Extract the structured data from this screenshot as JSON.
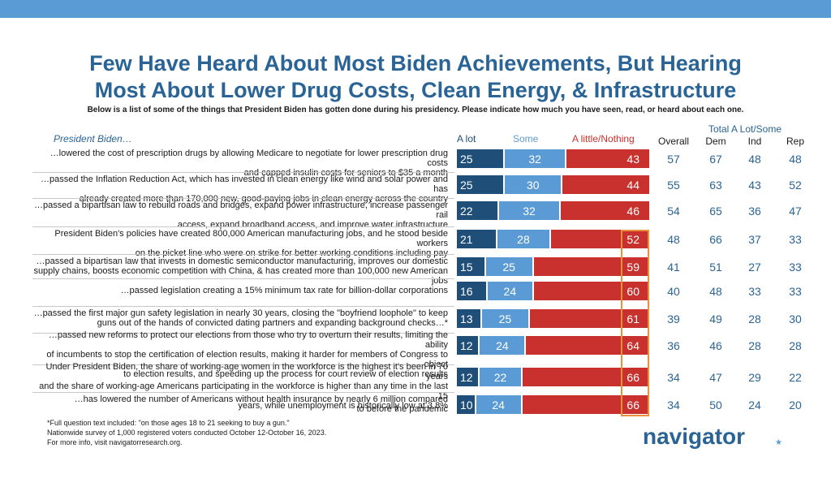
{
  "title_line1": "Few Have Heard About Most Biden Achievements, But Hearing",
  "title_line2": "Most About Lower Drug Costs, Clean Energy, & Infrastructure",
  "subtitle": "Below is a list of some of the things that President Biden has gotten done during his presidency. Please indicate how much you have seen, read, or heard about each one.",
  "row_header": "President Biden…",
  "group_header": "Total A Lot/Some",
  "colors": {
    "a_lot": "#1f4e79",
    "some": "#5b9bd5",
    "little": "#c8312d",
    "highlight": "#e8903a",
    "accent_text": "#2a6496"
  },
  "chart_data": {
    "type": "bar",
    "stacked": true,
    "orientation": "horizontal",
    "series_names": [
      "A lot",
      "Some",
      "A little/Nothing"
    ],
    "stat_columns": [
      "Overall",
      "Dem",
      "Ind",
      "Rep"
    ],
    "rows": [
      {
        "text": "…lowered the cost of prescription drugs by allowing Medicare to negotiate for lower prescription drug costs\nand capped insulin costs for seniors to $35 a month",
        "a_lot": 25,
        "some": 32,
        "little": 43,
        "overall": 57,
        "dem": 67,
        "ind": 48,
        "rep": 48
      },
      {
        "text": "…passed the Inflation Reduction Act, which has invested in clean energy like wind and solar power and has\nalready created more than 170,000 new, good-paying jobs in clean energy across the country",
        "a_lot": 25,
        "some": 30,
        "little": 44,
        "overall": 55,
        "dem": 63,
        "ind": 43,
        "rep": 52
      },
      {
        "text": "…passed a bipartisan law to rebuild roads and bridges, expand power infrastructure, increase passenger rail\naccess, expand broadband access, and improve water infrastructure",
        "a_lot": 22,
        "some": 32,
        "little": 46,
        "overall": 54,
        "dem": 65,
        "ind": 36,
        "rep": 47
      },
      {
        "text": "President Biden's policies have created 800,000 American manufacturing jobs, and he stood beside workers\non the picket line who were on strike for better working conditions including pay",
        "a_lot": 21,
        "some": 28,
        "little": 52,
        "overall": 48,
        "dem": 66,
        "ind": 37,
        "rep": 33
      },
      {
        "text": "…passed a bipartisan law that invests in domestic semiconductor manufacturing, improves our domestic\nsupply chains, boosts economic competition with China, & has created more than 100,000 new American jobs",
        "a_lot": 15,
        "some": 25,
        "little": 59,
        "overall": 41,
        "dem": 51,
        "ind": 27,
        "rep": 33
      },
      {
        "text": "…passed legislation creating a 15% minimum tax rate for billion-dollar corporations",
        "a_lot": 16,
        "some": 24,
        "little": 60,
        "overall": 40,
        "dem": 48,
        "ind": 33,
        "rep": 33
      },
      {
        "text": "…passed the first major gun safety legislation in nearly 30 years, closing the \"boyfriend loophole\" to keep\nguns out of the hands of convicted dating partners and expanding background checks…*",
        "a_lot": 13,
        "some": 25,
        "little": 61,
        "overall": 39,
        "dem": 49,
        "ind": 28,
        "rep": 30
      },
      {
        "text": "…passed new reforms to protect our elections from those who try to overturn their results, limiting the ability\nof incumbents to stop the certification of election results, making it harder for members of Congress to object\nto election results, and speeding up the process for court review of election results",
        "a_lot": 12,
        "some": 24,
        "little": 64,
        "overall": 36,
        "dem": 46,
        "ind": 28,
        "rep": 28
      },
      {
        "text": "Under President Biden, the share of working-age women in the workforce is the highest it's been in 70 years\nand the share of working-age Americans participating in the workforce is higher than any time in the last 15\nyears, while unemployment is historically low at 3.8%",
        "a_lot": 12,
        "some": 22,
        "little": 66,
        "overall": 34,
        "dem": 47,
        "ind": 29,
        "rep": 22
      },
      {
        "text": "…has lowered the number of Americans without health insurance by nearly 6 million compared\nto before the pandemic",
        "a_lot": 10,
        "some": 24,
        "little": 66,
        "overall": 34,
        "dem": 50,
        "ind": 24,
        "rep": 20
      }
    ]
  },
  "footnotes": [
    "*Full question text included: \"on those ages 18 to 21 seeking to buy a gun.\"",
    "Nationwide survey of 1,000 registered voters conducted October 12-October 16, 2023.",
    "For more info, visit navigatorresearch.org."
  ],
  "logo_text": "navigator",
  "logo_dot": "★"
}
